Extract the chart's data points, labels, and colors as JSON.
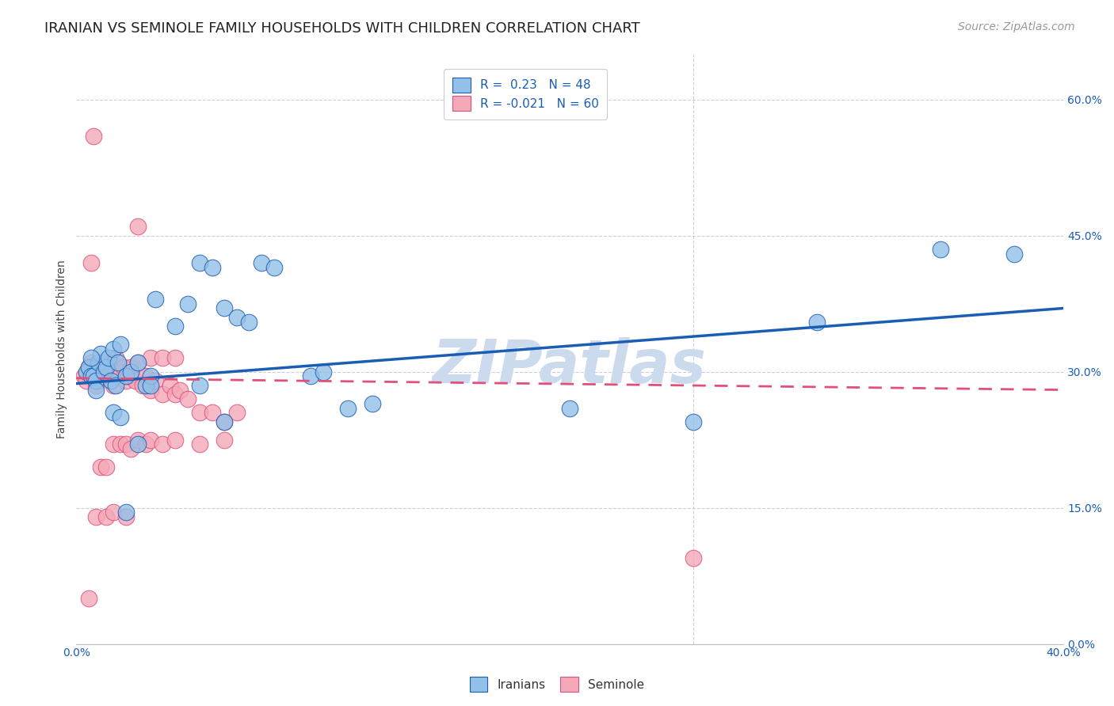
{
  "title": "IRANIAN VS SEMINOLE FAMILY HOUSEHOLDS WITH CHILDREN CORRELATION CHART",
  "source": "Source: ZipAtlas.com",
  "ylabel": "Family Households with Children",
  "xlabel_iranians": "Iranians",
  "xlabel_seminole": "Seminole",
  "watermark": "ZIPatlas",
  "xlim": [
    0.0,
    0.4
  ],
  "ylim": [
    0.0,
    0.65
  ],
  "yticks_right": [
    0.6,
    0.45,
    0.3,
    0.15,
    0.0
  ],
  "ytick_labels_right": [
    "60.0%",
    "45.0%",
    "30.0%",
    "15.0%",
    "0.0%"
  ],
  "xtick_vals": [
    0.0,
    0.05,
    0.1,
    0.15,
    0.2,
    0.25,
    0.3,
    0.35,
    0.4
  ],
  "xtick_labels": [
    "0.0%",
    "",
    "",
    "",
    "",
    "",
    "",
    "",
    "40.0%"
  ],
  "R_iranian": 0.23,
  "N_iranian": 48,
  "R_seminole": -0.021,
  "N_seminole": 60,
  "color_iranian": "#92C0E8",
  "color_seminole": "#F4A8B8",
  "line_color_iranian": "#1A5DB5",
  "line_color_seminole": "#E0507A",
  "background_color": "#ffffff",
  "grid_color": "#ccccdd",
  "title_fontsize": 13,
  "source_fontsize": 10,
  "legend_fontsize": 11,
  "axis_label_fontsize": 10,
  "tick_fontsize": 10,
  "watermark_color": "#ccdaee",
  "watermark_fontsize": 55,
  "iranians_x": [
    0.004,
    0.005,
    0.006,
    0.007,
    0.008,
    0.009,
    0.01,
    0.011,
    0.012,
    0.013,
    0.014,
    0.015,
    0.016,
    0.017,
    0.018,
    0.02,
    0.022,
    0.025,
    0.028,
    0.03,
    0.032,
    0.04,
    0.045,
    0.05,
    0.055,
    0.06,
    0.065,
    0.07,
    0.075,
    0.08,
    0.095,
    0.1,
    0.11,
    0.12,
    0.015,
    0.018,
    0.02,
    0.025,
    0.03,
    0.05,
    0.06,
    0.2,
    0.25,
    0.3,
    0.35,
    0.38,
    0.006,
    0.008
  ],
  "iranians_y": [
    0.3,
    0.305,
    0.295,
    0.295,
    0.29,
    0.31,
    0.32,
    0.3,
    0.305,
    0.315,
    0.29,
    0.325,
    0.285,
    0.31,
    0.33,
    0.295,
    0.3,
    0.31,
    0.285,
    0.295,
    0.38,
    0.35,
    0.375,
    0.42,
    0.415,
    0.37,
    0.36,
    0.355,
    0.42,
    0.415,
    0.295,
    0.3,
    0.26,
    0.265,
    0.255,
    0.25,
    0.145,
    0.22,
    0.285,
    0.285,
    0.245,
    0.26,
    0.245,
    0.355,
    0.435,
    0.43,
    0.315,
    0.28
  ],
  "seminole_x": [
    0.003,
    0.004,
    0.005,
    0.006,
    0.007,
    0.008,
    0.009,
    0.01,
    0.011,
    0.012,
    0.013,
    0.014,
    0.015,
    0.016,
    0.017,
    0.018,
    0.019,
    0.02,
    0.021,
    0.022,
    0.024,
    0.025,
    0.027,
    0.028,
    0.03,
    0.032,
    0.035,
    0.038,
    0.04,
    0.042,
    0.045,
    0.05,
    0.055,
    0.06,
    0.065,
    0.007,
    0.01,
    0.012,
    0.015,
    0.018,
    0.02,
    0.022,
    0.025,
    0.028,
    0.03,
    0.035,
    0.04,
    0.05,
    0.06,
    0.005,
    0.008,
    0.012,
    0.015,
    0.02,
    0.025,
    0.03,
    0.035,
    0.04,
    0.006,
    0.25
  ],
  "seminole_y": [
    0.295,
    0.29,
    0.305,
    0.31,
    0.295,
    0.285,
    0.3,
    0.31,
    0.295,
    0.305,
    0.3,
    0.31,
    0.285,
    0.315,
    0.295,
    0.3,
    0.305,
    0.29,
    0.295,
    0.305,
    0.29,
    0.31,
    0.285,
    0.295,
    0.28,
    0.29,
    0.275,
    0.285,
    0.275,
    0.28,
    0.27,
    0.255,
    0.255,
    0.245,
    0.255,
    0.56,
    0.195,
    0.195,
    0.22,
    0.22,
    0.22,
    0.215,
    0.225,
    0.22,
    0.225,
    0.22,
    0.225,
    0.22,
    0.225,
    0.05,
    0.14,
    0.14,
    0.145,
    0.14,
    0.46,
    0.315,
    0.315,
    0.315,
    0.42,
    0.095
  ],
  "iran_line_x": [
    0.0,
    0.4
  ],
  "iran_line_y": [
    0.287,
    0.37
  ],
  "sem_line_x": [
    0.0,
    0.4
  ],
  "sem_line_y": [
    0.293,
    0.28
  ]
}
